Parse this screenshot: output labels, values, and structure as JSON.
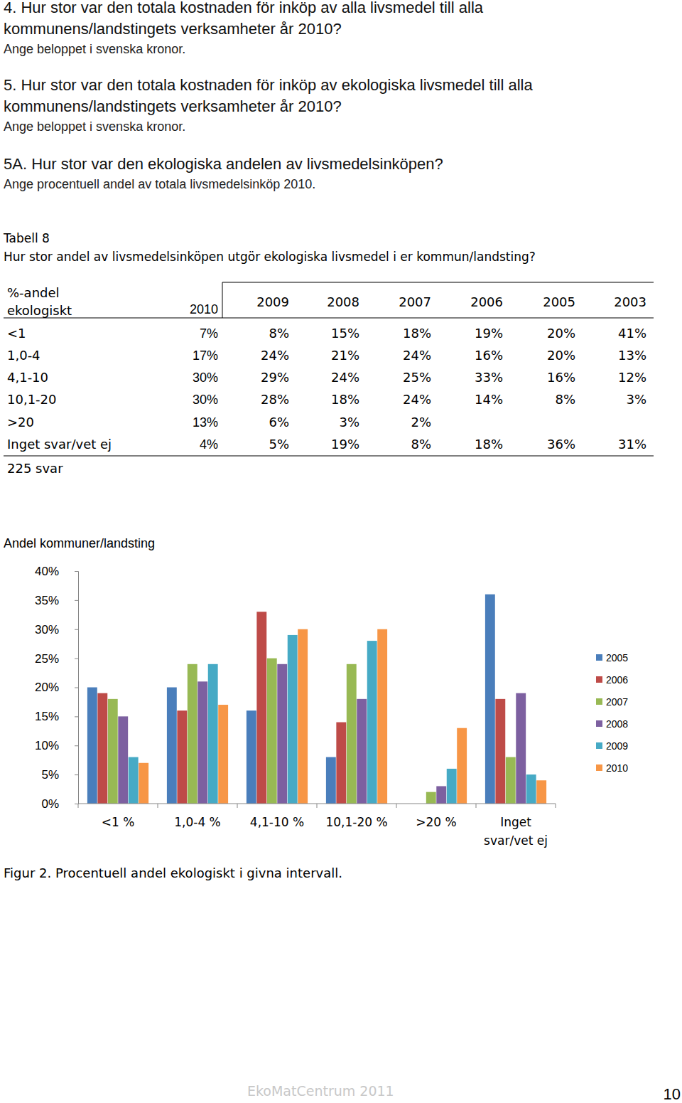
{
  "questions": [
    {
      "lines": [
        "4. Hur stor var den totala kostnaden för inköp av alla livsmedel till alla",
        "kommunens/landstingets verksamheter år 2010?"
      ],
      "hint": "Ange beloppet i svenska kronor."
    },
    {
      "lines": [
        "5. Hur stor var den totala kostnaden för inköp av ekologiska livsmedel till alla",
        "kommunens/landstingets verksamheter år 2010?"
      ],
      "hint": "Ange beloppet i svenska kronor."
    },
    {
      "lines": [
        "5A. Hur stor var den ekologiska andelen av livsmedelsinköpen?"
      ],
      "hint": "Ange procentuell andel av totala livsmedelsinköp 2010."
    }
  ],
  "table": {
    "caption": [
      "Tabell 8",
      "Hur stor andel av livsmedelsinköpen utgör ekologiska livsmedel i er kommun/landsting?"
    ],
    "header_label": [
      "%-andel",
      "ekologiskt"
    ],
    "years": [
      "2010",
      "2009",
      "2008",
      "2007",
      "2006",
      "2005",
      "2003"
    ],
    "rows": [
      {
        "label": "<1",
        "values": [
          "7%",
          "8%",
          "15%",
          "18%",
          "19%",
          "20%",
          "41%"
        ]
      },
      {
        "label": "1,0-4",
        "values": [
          "17%",
          "24%",
          "21%",
          "24%",
          "16%",
          "20%",
          "13%"
        ]
      },
      {
        "label": "4,1-10",
        "values": [
          "30%",
          "29%",
          "24%",
          "25%",
          "33%",
          "16%",
          "12%"
        ]
      },
      {
        "label": "10,1-20",
        "values": [
          "30%",
          "28%",
          "18%",
          "24%",
          "14%",
          "8%",
          "3%"
        ]
      },
      {
        "label": ">20",
        "values": [
          "13%",
          "6%",
          "3%",
          "2%",
          null,
          null,
          null
        ]
      },
      {
        "label": "Inget svar/vet ej",
        "values": [
          "4%",
          "5%",
          "19%",
          "8%",
          "18%",
          "36%",
          "31%"
        ]
      }
    ],
    "note": "225 svar"
  },
  "chart_data": {
    "type": "bar",
    "y_label": "Andel kommuner/landsting",
    "categories": [
      "<1 %",
      "1,0-4 %",
      "4,1-10 %",
      "10,1-20 %",
      ">20 %",
      "Inget svar/vet ej"
    ],
    "series": [
      {
        "name": "2005",
        "color": "#4a7ebb",
        "values": [
          20,
          20,
          16,
          8,
          null,
          36
        ]
      },
      {
        "name": "2006",
        "color": "#be4b48",
        "values": [
          19,
          16,
          33,
          14,
          null,
          18
        ]
      },
      {
        "name": "2007",
        "color": "#98b954",
        "values": [
          18,
          24,
          25,
          24,
          2,
          8
        ]
      },
      {
        "name": "2008",
        "color": "#7d60a0",
        "values": [
          15,
          21,
          24,
          18,
          3,
          19
        ]
      },
      {
        "name": "2009",
        "color": "#46aac5",
        "values": [
          8,
          24,
          29,
          28,
          6,
          5
        ]
      },
      {
        "name": "2010",
        "color": "#f79646",
        "values": [
          7,
          17,
          30,
          30,
          13,
          4
        ]
      }
    ],
    "ylim": [
      0,
      40
    ],
    "yticks": [
      {
        "value": 0,
        "label": "0%"
      },
      {
        "value": 5,
        "label": "5%"
      },
      {
        "value": 10,
        "label": "10%"
      },
      {
        "value": 15,
        "label": "15%"
      },
      {
        "value": 20,
        "label": "20%"
      },
      {
        "value": 25,
        "label": "25%"
      },
      {
        "value": 30,
        "label": "30%"
      },
      {
        "value": 35,
        "label": "35%"
      },
      {
        "value": 40,
        "label": "40%"
      }
    ],
    "grid": false,
    "legend": "right",
    "caption": "Figur 2. Procentuell andel ekologiskt i givna intervall."
  },
  "footer": {
    "source": "EkoMatCentrum 2011",
    "page": "10"
  }
}
